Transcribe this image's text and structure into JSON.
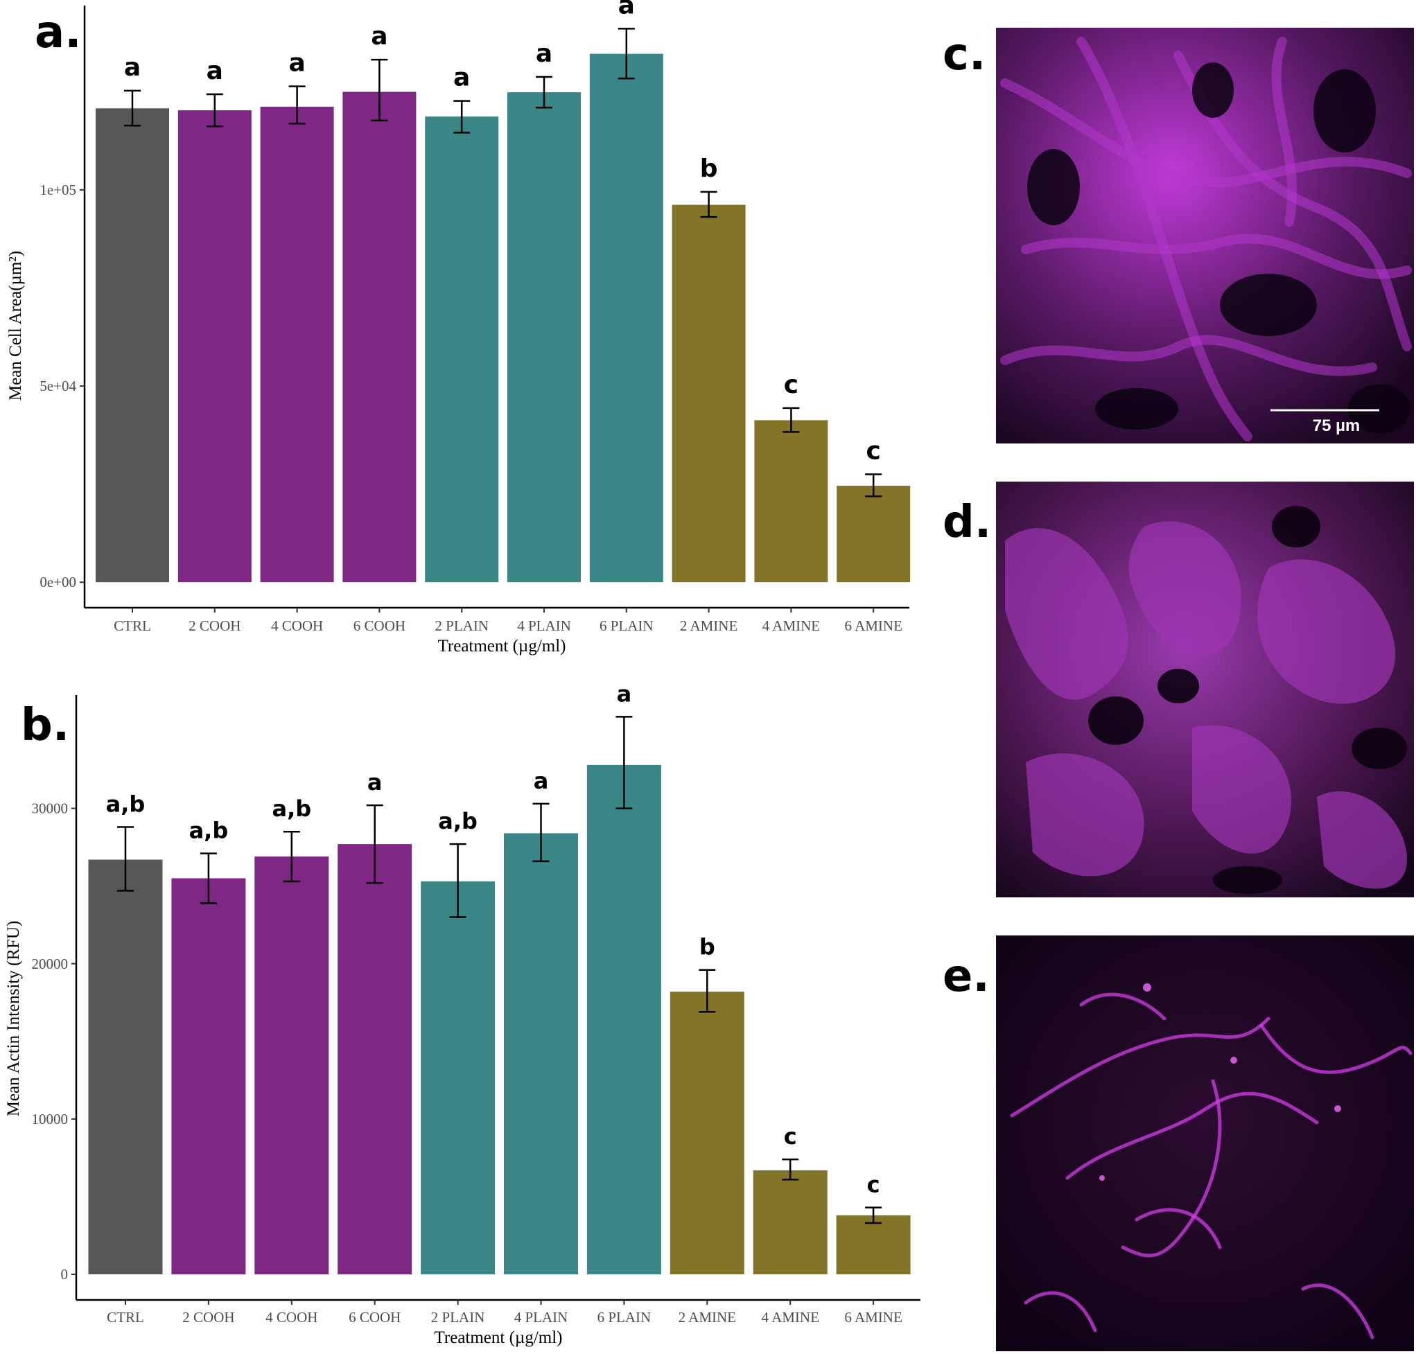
{
  "panels": {
    "a": "a.",
    "b": "b.",
    "c": "c.",
    "d": "d.",
    "e": "e."
  },
  "colors": {
    "CTRL": "#575757",
    "COOH": "#7e2785",
    "PLAIN": "#3b8787",
    "AMINE": "#847428",
    "image_tint": "#b030c8"
  },
  "chart_data": [
    {
      "type": "bar",
      "panel": "a.",
      "categories": [
        "CTRL",
        "2 COOH",
        "4 COOH",
        "6 COOH",
        "2 PLAIN",
        "4 PLAIN",
        "6 PLAIN",
        "2 AMINE",
        "4 AMINE",
        "6 AMINE"
      ],
      "groups": [
        "CTRL",
        "COOH",
        "COOH",
        "COOH",
        "PLAIN",
        "PLAIN",
        "PLAIN",
        "AMINE",
        "AMINE",
        "AMINE"
      ],
      "values": [
        120800,
        120300,
        121200,
        125000,
        118700,
        124900,
        134700,
        96200,
        41300,
        24600
      ],
      "error_low": [
        116400,
        116200,
        116900,
        117700,
        114600,
        121000,
        128400,
        93100,
        38300,
        21900
      ],
      "error_high": [
        125300,
        124400,
        126400,
        133200,
        122700,
        128800,
        141100,
        99500,
        44400,
        27500
      ],
      "significance": [
        "a",
        "a",
        "a",
        "a",
        "a",
        "a",
        "a",
        "b",
        "c",
        "c"
      ],
      "xlabel": "Treatment (µg/ml)",
      "ylabel": "Mean Cell Area(µm²)",
      "yticks": [
        "0e+00",
        "5e+04",
        "1e+05"
      ],
      "ytick_values": [
        0,
        50000,
        100000
      ],
      "ylim": [
        -6500,
        147000
      ],
      "grid": false,
      "legend": "none"
    },
    {
      "type": "bar",
      "panel": "b.",
      "categories": [
        "CTRL",
        "2 COOH",
        "4 COOH",
        "6 COOH",
        "2 PLAIN",
        "4 PLAIN",
        "6 PLAIN",
        "2 AMINE",
        "4 AMINE",
        "6 AMINE"
      ],
      "groups": [
        "CTRL",
        "COOH",
        "COOH",
        "COOH",
        "PLAIN",
        "PLAIN",
        "PLAIN",
        "AMINE",
        "AMINE",
        "AMINE"
      ],
      "values": [
        26700,
        25500,
        26900,
        27700,
        25300,
        28400,
        32800,
        18200,
        6700,
        3800
      ],
      "error_low": [
        24700,
        23900,
        25300,
        25200,
        23000,
        26600,
        30000,
        16900,
        6100,
        3300
      ],
      "error_high": [
        28800,
        27100,
        28500,
        30200,
        27700,
        30300,
        35900,
        19600,
        7400,
        4300
      ],
      "significance": [
        "a,b",
        "a,b",
        "a,b",
        "a",
        "a,b",
        "a",
        "a",
        "b",
        "c",
        "c"
      ],
      "xlabel": "Treatment (µg/ml)",
      "ylabel": "Mean Actin Intensity (RFU)",
      "yticks": [
        "0",
        "10000",
        "20000",
        "30000"
      ],
      "ytick_values": [
        0,
        10000,
        20000,
        30000
      ],
      "ylim": [
        -1650,
        37300
      ],
      "grid": false,
      "legend": "none"
    }
  ],
  "micrographs": {
    "scale_bar_label": "75 µm"
  }
}
